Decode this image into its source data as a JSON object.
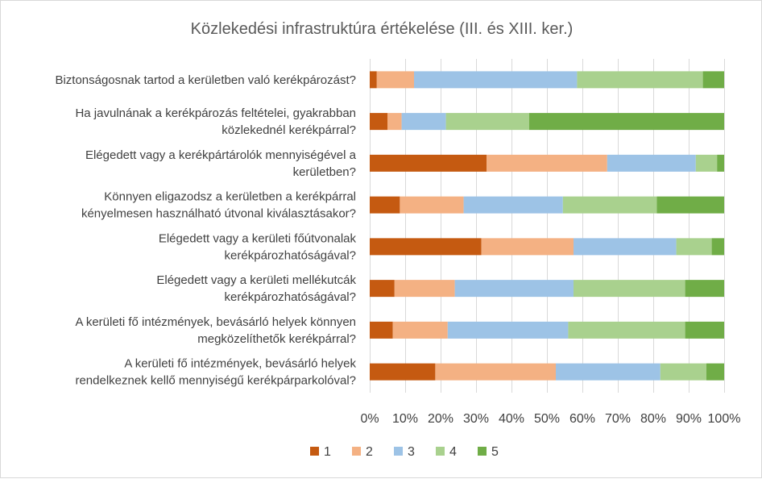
{
  "chart_data": {
    "type": "bar",
    "orientation": "horizontal",
    "stacked": "percent",
    "title": "Közlekedési infrastruktúra értékelése  (III. és XIII. ker.)",
    "categories": [
      [
        "Biztonságosnak tartod a kerületben való kerékpározást?"
      ],
      [
        "Ha javulnának a kerékpározás feltételei, gyakrabban",
        "közlekednél kerékpárral?"
      ],
      [
        "Elégedett vagy a kerékpártárolók mennyiségével a",
        "kerületben?"
      ],
      [
        "Könnyen eligazodsz a kerületben a kerékpárral",
        "kényelmesen használható útvonal kiválasztásakor?"
      ],
      [
        "Elégedett vagy a kerületi főútvonalak",
        "kerékpározhatóságával?"
      ],
      [
        "Elégedett vagy a kerületi mellékutcák",
        "kerékpározhatóságával?"
      ],
      [
        "A kerületi fő intézmények, bevásárló helyek könnyen",
        "megközelíthetők kerékpárral?"
      ],
      [
        "A kerületi fő intézmények, bevásárló helyek",
        "rendelkeznek kellő mennyiségű kerékpárparkolóval?"
      ]
    ],
    "series": [
      {
        "name": "1",
        "color": "#c55a11",
        "values": [
          2,
          5,
          33,
          8.5,
          31.5,
          7,
          6.5,
          18.5
        ]
      },
      {
        "name": "2",
        "color": "#f4b183",
        "values": [
          10.5,
          4,
          34,
          18,
          26,
          17,
          15.5,
          34
        ]
      },
      {
        "name": "3",
        "color": "#9dc3e6",
        "values": [
          46,
          12.5,
          25,
          28,
          29,
          33.5,
          34,
          29.5
        ]
      },
      {
        "name": "4",
        "color": "#a9d18e",
        "values": [
          35.5,
          23.5,
          6,
          26.5,
          10,
          31.5,
          33,
          13
        ]
      },
      {
        "name": "5",
        "color": "#70ad47",
        "values": [
          6,
          55,
          2,
          19,
          3.5,
          11,
          11,
          5
        ]
      }
    ],
    "xticks": [
      "0%",
      "10%",
      "20%",
      "30%",
      "40%",
      "50%",
      "60%",
      "70%",
      "80%",
      "90%",
      "100%"
    ],
    "xlim": [
      0,
      100
    ],
    "grid": true,
    "legend_position": "bottom"
  }
}
